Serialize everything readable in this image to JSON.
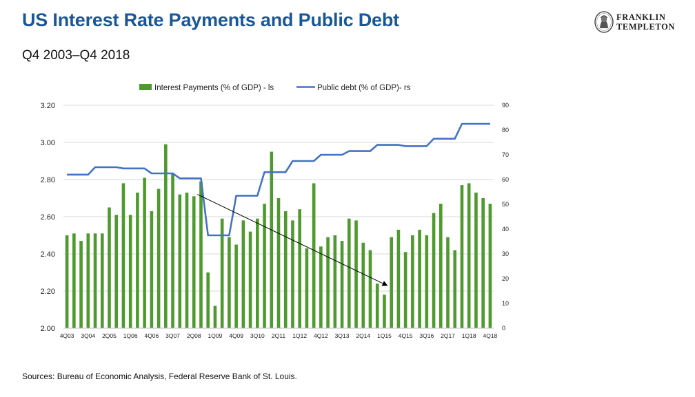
{
  "header": {
    "title": "US Interest Rate Payments and Public Debt",
    "subtitle": "Q4 2003–Q4 2018"
  },
  "logo": {
    "line1": "FRANKLIN",
    "line2": "TEMPLETON"
  },
  "footer": {
    "source": "Sources: Bureau of Economic Analysis, Federal Reserve Bank of St. Louis."
  },
  "colors": {
    "bars": "#4e9a2e",
    "line": "#4472c4",
    "arrow": "#000000",
    "grid": "#d9d9d9"
  },
  "chart_data": {
    "type": "bar+line",
    "legend_position": "top",
    "x_tick_labels": [
      "4Q03",
      "3Q04",
      "2Q05",
      "1Q06",
      "4Q06",
      "3Q07",
      "2Q08",
      "1Q09",
      "4Q09",
      "3Q10",
      "2Q11",
      "1Q12",
      "4Q12",
      "3Q13",
      "2Q14",
      "1Q15",
      "4Q15",
      "3Q16",
      "2Q17",
      "1Q18",
      "4Q18"
    ],
    "left_axis": {
      "ylim": [
        2.0,
        3.2
      ],
      "ticks": [
        "2.00",
        "2.20",
        "2.40",
        "2.60",
        "2.80",
        "3.00",
        "3.20"
      ]
    },
    "right_axis": {
      "ylim": [
        0,
        90
      ],
      "ticks": [
        "0",
        "10",
        "20",
        "30",
        "40",
        "50",
        "60",
        "70",
        "80",
        "90"
      ]
    },
    "series": [
      {
        "name": "Interest Payments (% of GDP) - ls",
        "type": "bar",
        "axis": "left",
        "values": [
          2.5,
          2.51,
          2.47,
          2.51,
          2.51,
          2.51,
          2.65,
          2.61,
          2.78,
          2.61,
          2.73,
          2.81,
          2.63,
          2.75,
          2.99,
          2.83,
          2.72,
          2.73,
          2.71,
          2.79,
          2.3,
          2.12,
          2.59,
          2.49,
          2.45,
          2.58,
          2.52,
          2.59,
          2.67,
          2.95,
          2.7,
          2.63,
          2.58,
          2.64,
          2.43,
          2.78,
          2.44,
          2.49,
          2.5,
          2.47,
          2.59,
          2.58,
          2.46,
          2.42,
          2.24,
          2.18,
          2.49,
          2.53,
          2.41,
          2.5,
          2.53,
          2.5,
          2.62,
          2.67,
          2.49,
          2.42,
          2.77,
          2.78,
          2.73,
          2.7,
          2.67
        ]
      },
      {
        "name": "Public debt (% of GDP)- rs",
        "type": "line",
        "axis": "right",
        "values": [
          62,
          62,
          62,
          62,
          65,
          65,
          65,
          65,
          64.5,
          64.5,
          64.5,
          64.5,
          62.5,
          62.5,
          62.5,
          62.5,
          60.5,
          60.5,
          60.5,
          60.5,
          37.5,
          37.5,
          37.5,
          37.5,
          53.5,
          53.5,
          53.5,
          53.5,
          63,
          63,
          63,
          63,
          67.5,
          67.5,
          67.5,
          67.5,
          70,
          70,
          70,
          70,
          71.5,
          71.5,
          71.5,
          71.5,
          74,
          74,
          74,
          74,
          73.5,
          73.5,
          73.5,
          73.5,
          76.5,
          76.5,
          76.5,
          76.5,
          82.5,
          82.5,
          82.5,
          82.5,
          82.5
        ]
      }
    ],
    "annotation": {
      "type": "arrow",
      "from": {
        "index": 18.5,
        "value": 2.72
      },
      "to": {
        "index": 45.4,
        "value": 2.23
      }
    }
  }
}
